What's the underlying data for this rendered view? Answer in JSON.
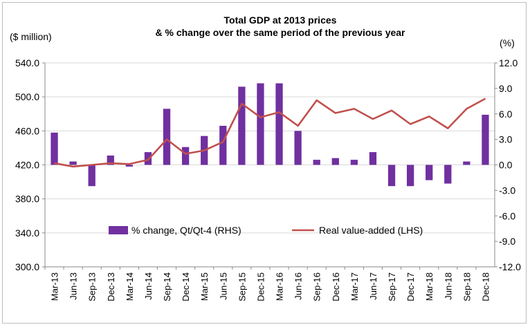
{
  "chart_data": {
    "type": "bar+line",
    "title_lines": [
      "Total GDP at 2013 prices",
      "& % change over the same period of the previous year"
    ],
    "left_unit": "($ million)",
    "right_unit": "(%)",
    "categories": [
      "Mar-13",
      "Jun-13",
      "Sep-13",
      "Dec-13",
      "Mar-14",
      "Jun-14",
      "Sep-14",
      "Dec-14",
      "Mar-15",
      "Jun-15",
      "Sep-15",
      "Dec-15",
      "Mar-16",
      "Jun-16",
      "Sep-16",
      "Dec-16",
      "Mar-17",
      "Jun-17",
      "Sep-17",
      "Dec-17",
      "Mar-18",
      "Jun-18",
      "Sep-18",
      "Dec-18"
    ],
    "left_axis": {
      "min": 300,
      "max": 540,
      "step": 40,
      "ticks": [
        "300.0",
        "340.0",
        "380.0",
        "420.0",
        "460.0",
        "500.0",
        "540.0"
      ]
    },
    "right_axis": {
      "min": -12,
      "max": 12,
      "step": 3,
      "ticks": [
        "-12.0",
        "-9.0",
        "-6.0",
        "-3.0",
        "0.0",
        "3.0",
        "6.0",
        "9.0",
        "12.0"
      ]
    },
    "grid": "horizontal",
    "series": [
      {
        "name": "% change, Qt/Qt-4 (RHS)",
        "type": "bar",
        "axis": "right",
        "color": "#7030a0",
        "values": [
          3.8,
          0.4,
          -2.5,
          1.1,
          -0.2,
          1.5,
          6.6,
          2.1,
          3.4,
          4.6,
          9.2,
          9.6,
          9.6,
          4.0,
          0.6,
          0.8,
          0.6,
          1.5,
          -2.5,
          -2.5,
          -1.8,
          -2.2,
          0.4,
          5.9
        ]
      },
      {
        "name": "Real value-added (LHS)",
        "type": "line",
        "axis": "left",
        "color": "#c0504d",
        "values": [
          422,
          418,
          420,
          422,
          421,
          426,
          450,
          433,
          437,
          447,
          492,
          476,
          482,
          466,
          496,
          481,
          486,
          474,
          484,
          468,
          477,
          463,
          486,
          498
        ]
      }
    ],
    "legend_position": "bottom-inside"
  }
}
